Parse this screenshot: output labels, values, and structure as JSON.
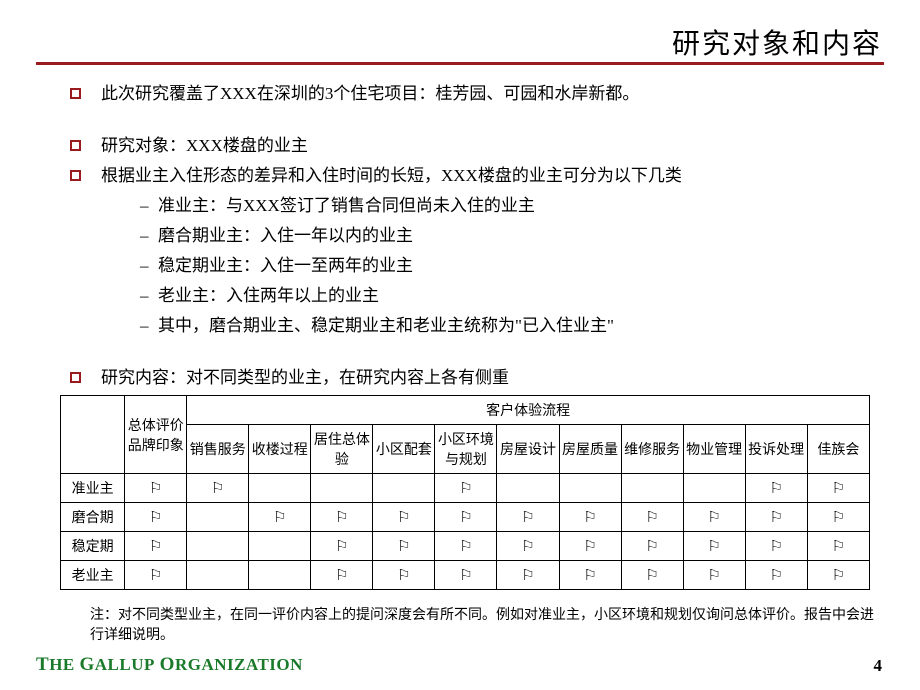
{
  "title": "研究对象和内容",
  "bullets": {
    "b1": "此次研究覆盖了XXX在深圳的3个住宅项目：桂芳园、可园和水岸新都。",
    "b2": "研究对象：XXX楼盘的业主",
    "b3": "根据业主入住形态的差异和入住时间的长短，XXX楼盘的业主可分为以下几类",
    "s1": "准业主：与XXX签订了销售合同但尚未入住的业主",
    "s2": "磨合期业主：入住一年以内的业主",
    "s3": "稳定期业主：入住一至两年的业主",
    "s4": "老业主：入住两年以上的业主",
    "s5": "其中，磨合期业主、稳定期业主和老业主统称为\"已入住业主\"",
    "b4": "研究内容：对不同类型的业主，在研究内容上各有侧重"
  },
  "table": {
    "header_group": "客户体验流程",
    "col_brand": "总体评价品牌印象",
    "cols": [
      "销售服务",
      "收楼过程",
      "居住总体验",
      "小区配套",
      "小区环境与规划",
      "房屋设计",
      "房屋质量",
      "维修服务",
      "物业管理",
      "投诉处理",
      "佳族会"
    ],
    "rows": [
      {
        "label": "准业主",
        "brand": true,
        "cells": [
          true,
          false,
          false,
          false,
          true,
          false,
          false,
          false,
          false,
          true,
          true
        ]
      },
      {
        "label": "磨合期",
        "brand": true,
        "cells": [
          false,
          true,
          true,
          true,
          true,
          true,
          true,
          true,
          true,
          true,
          true
        ]
      },
      {
        "label": "稳定期",
        "brand": true,
        "cells": [
          false,
          false,
          true,
          true,
          true,
          true,
          true,
          true,
          true,
          true,
          true
        ]
      },
      {
        "label": "老业主",
        "brand": true,
        "cells": [
          false,
          false,
          true,
          true,
          true,
          true,
          true,
          true,
          true,
          true,
          true
        ]
      }
    ],
    "flag_glyph": "⚐"
  },
  "note": "注：对不同类型业主，在同一评价内容上的提问深度会有所不同。例如对准业主，小区环境和规划仅询问总体评价。报告中会进行详细说明。",
  "footer": {
    "org_html_parts": {
      "t": "T",
      "he": "HE",
      "sp": " ",
      "g": "G",
      "allup": "ALLUP",
      "o": "O",
      "rg": "RGANIZATION"
    },
    "page": "4"
  },
  "colors": {
    "accent": "#9a1b1e",
    "org": "#1a7a2a",
    "text": "#000000",
    "bg": "#ffffff",
    "border": "#000000"
  }
}
